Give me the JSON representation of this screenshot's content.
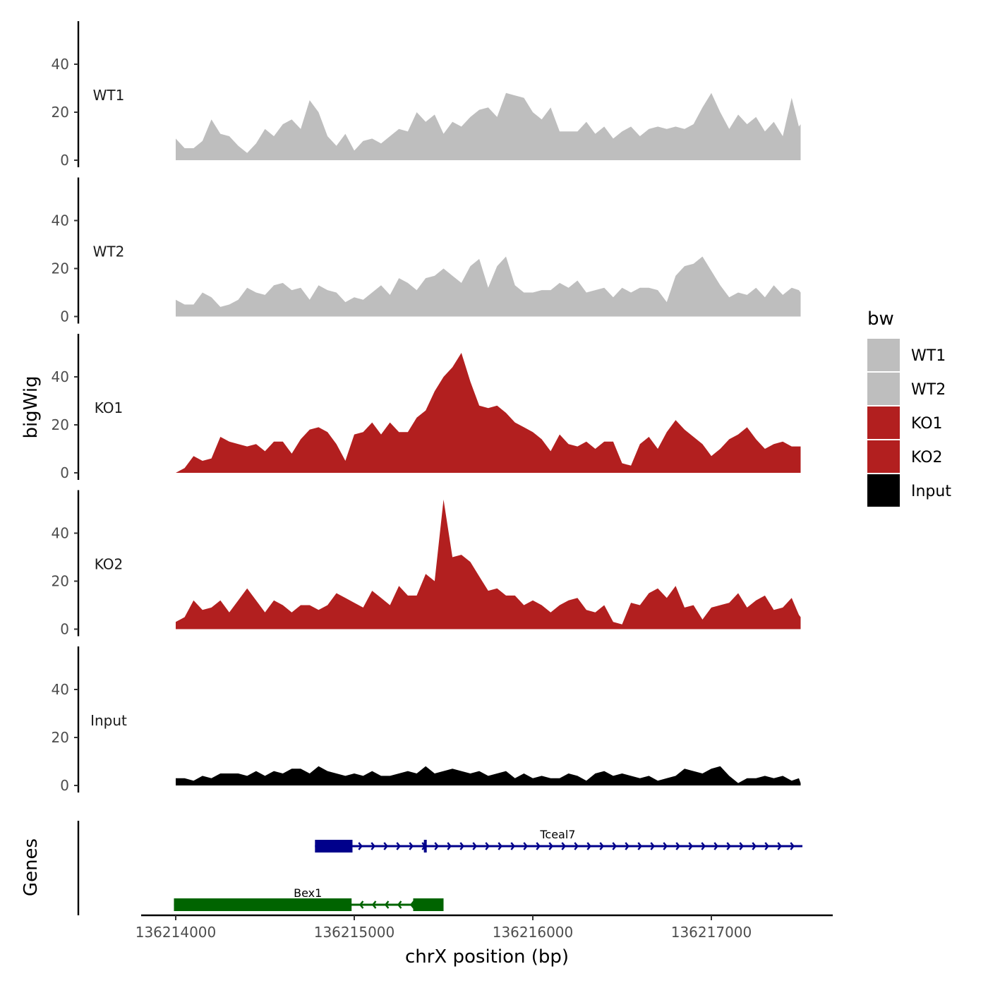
{
  "chart_data": {
    "type": "area",
    "title": "",
    "ylabel": "bigWig",
    "xlabel": "chrX position (bp)",
    "genes_label": "Genes",
    "ylim": [
      0,
      57
    ],
    "yticks": [
      0,
      20,
      40
    ],
    "xlim": [
      136213800,
      136217700
    ],
    "xticks": [
      136214000,
      136215000,
      136216000,
      136217000
    ],
    "xtick_labels": [
      "136214000",
      "136215000",
      "136216000",
      "136217000"
    ],
    "legend": {
      "title": "bw",
      "placement": "right",
      "entries": [
        {
          "name": "WT1",
          "color": "#bebebe"
        },
        {
          "name": "WT2",
          "color": "#bebebe"
        },
        {
          "name": "KO1",
          "color": "#b21f1f"
        },
        {
          "name": "KO2",
          "color": "#b21f1f"
        },
        {
          "name": "Input",
          "color": "#000000"
        }
      ]
    },
    "tracks": [
      {
        "name": "WT1",
        "color": "#bebebe",
        "x": [
          136214000,
          136214050,
          136214100,
          136214150,
          136214200,
          136214250,
          136214300,
          136214350,
          136214400,
          136214450,
          136214500,
          136214550,
          136214600,
          136214650,
          136214700,
          136214750,
          136214800,
          136214850,
          136214900,
          136214950,
          136215000,
          136215050,
          136215100,
          136215150,
          136215200,
          136215250,
          136215300,
          136215350,
          136215400,
          136215450,
          136215500,
          136215550,
          136215600,
          136215650,
          136215700,
          136215750,
          136215800,
          136215850,
          136215900,
          136215950,
          136216000,
          136216050,
          136216100,
          136216150,
          136216200,
          136216250,
          136216300,
          136216350,
          136216400,
          136216450,
          136216500,
          136216550,
          136216600,
          136216650,
          136216700,
          136216750,
          136216800,
          136216850,
          136216900,
          136216950,
          136217000,
          136217050,
          136217100,
          136217150,
          136217200,
          136217250,
          136217300,
          136217350,
          136217400,
          136217450,
          136217490,
          136217500
        ],
        "y": [
          9,
          5,
          5,
          8,
          17,
          11,
          10,
          6,
          3,
          7,
          13,
          10,
          15,
          17,
          13,
          25,
          20,
          10,
          6,
          11,
          4,
          8,
          9,
          7,
          10,
          13,
          12,
          20,
          16,
          19,
          11,
          16,
          14,
          18,
          21,
          22,
          18,
          28,
          27,
          26,
          20,
          17,
          22,
          12,
          12,
          12,
          16,
          11,
          14,
          9,
          12,
          14,
          10,
          13,
          14,
          13,
          14,
          13,
          15,
          22,
          28,
          20,
          13,
          19,
          15,
          18,
          12,
          16,
          10,
          26,
          14,
          15
        ]
      },
      {
        "name": "WT2",
        "color": "#bebebe",
        "x": [
          136214000,
          136214050,
          136214100,
          136214150,
          136214200,
          136214250,
          136214300,
          136214350,
          136214400,
          136214450,
          136214500,
          136214550,
          136214600,
          136214650,
          136214700,
          136214750,
          136214800,
          136214850,
          136214900,
          136214950,
          136215000,
          136215050,
          136215100,
          136215150,
          136215200,
          136215250,
          136215300,
          136215350,
          136215400,
          136215450,
          136215500,
          136215550,
          136215600,
          136215650,
          136215700,
          136215750,
          136215800,
          136215850,
          136215900,
          136215950,
          136216000,
          136216050,
          136216100,
          136216150,
          136216200,
          136216250,
          136216300,
          136216350,
          136216400,
          136216450,
          136216500,
          136216550,
          136216600,
          136216650,
          136216700,
          136216750,
          136216800,
          136216850,
          136216900,
          136216950,
          136217000,
          136217050,
          136217100,
          136217150,
          136217200,
          136217250,
          136217300,
          136217350,
          136217400,
          136217450,
          136217490,
          136217500
        ],
        "y": [
          7,
          5,
          5,
          10,
          8,
          4,
          5,
          7,
          12,
          10,
          9,
          13,
          14,
          11,
          12,
          7,
          13,
          11,
          10,
          6,
          8,
          7,
          10,
          13,
          9,
          16,
          14,
          11,
          16,
          17,
          20,
          17,
          14,
          21,
          24,
          12,
          21,
          25,
          13,
          10,
          10,
          11,
          11,
          14,
          12,
          15,
          10,
          11,
          12,
          8,
          12,
          10,
          12,
          12,
          11,
          6,
          17,
          21,
          22,
          25,
          19,
          13,
          8,
          10,
          9,
          12,
          8,
          13,
          9,
          12,
          11,
          10
        ]
      },
      {
        "name": "KO1",
        "color": "#b21f1f",
        "x": [
          136214000,
          136214050,
          136214100,
          136214150,
          136214200,
          136214250,
          136214300,
          136214350,
          136214400,
          136214450,
          136214500,
          136214550,
          136214600,
          136214650,
          136214700,
          136214750,
          136214800,
          136214850,
          136214900,
          136214950,
          136215000,
          136215050,
          136215100,
          136215150,
          136215200,
          136215250,
          136215300,
          136215350,
          136215400,
          136215450,
          136215500,
          136215550,
          136215600,
          136215650,
          136215700,
          136215750,
          136215800,
          136215850,
          136215900,
          136215950,
          136216000,
          136216050,
          136216100,
          136216150,
          136216200,
          136216250,
          136216300,
          136216350,
          136216400,
          136216450,
          136216500,
          136216550,
          136216600,
          136216650,
          136216700,
          136216750,
          136216800,
          136216850,
          136216900,
          136216950,
          136217000,
          136217050,
          136217100,
          136217150,
          136217200,
          136217250,
          136217300,
          136217350,
          136217400,
          136217450,
          136217490,
          136217500
        ],
        "y": [
          0,
          2,
          7,
          5,
          6,
          15,
          13,
          12,
          11,
          12,
          9,
          13,
          13,
          8,
          14,
          18,
          19,
          17,
          12,
          5,
          16,
          17,
          21,
          16,
          21,
          17,
          17,
          23,
          26,
          34,
          40,
          44,
          50,
          38,
          28,
          27,
          28,
          25,
          21,
          19,
          17,
          14,
          9,
          16,
          12,
          11,
          13,
          10,
          13,
          13,
          4,
          3,
          12,
          15,
          10,
          17,
          22,
          18,
          15,
          12,
          7,
          10,
          14,
          16,
          19,
          14,
          10,
          12,
          13,
          11,
          11,
          11
        ]
      },
      {
        "name": "KO2",
        "color": "#b21f1f",
        "x": [
          136214000,
          136214050,
          136214100,
          136214150,
          136214200,
          136214250,
          136214300,
          136214350,
          136214400,
          136214450,
          136214500,
          136214550,
          136214600,
          136214650,
          136214700,
          136214750,
          136214800,
          136214850,
          136214900,
          136214950,
          136215000,
          136215050,
          136215100,
          136215150,
          136215200,
          136215250,
          136215300,
          136215350,
          136215400,
          136215450,
          136215500,
          136215550,
          136215600,
          136215650,
          136215700,
          136215750,
          136215800,
          136215850,
          136215900,
          136215950,
          136216000,
          136216050,
          136216100,
          136216150,
          136216200,
          136216250,
          136216300,
          136216350,
          136216400,
          136216450,
          136216500,
          136216550,
          136216600,
          136216650,
          136216700,
          136216750,
          136216800,
          136216850,
          136216900,
          136216950,
          136217000,
          136217050,
          136217100,
          136217150,
          136217200,
          136217250,
          136217300,
          136217350,
          136217400,
          136217450,
          136217490,
          136217500
        ],
        "y": [
          3,
          5,
          12,
          8,
          9,
          12,
          7,
          12,
          17,
          12,
          7,
          12,
          10,
          7,
          10,
          10,
          8,
          10,
          15,
          13,
          11,
          9,
          16,
          13,
          10,
          18,
          14,
          14,
          23,
          20,
          54,
          30,
          31,
          28,
          22,
          16,
          17,
          14,
          14,
          10,
          12,
          10,
          7,
          10,
          12,
          13,
          8,
          7,
          10,
          3,
          2,
          11,
          10,
          15,
          17,
          13,
          18,
          9,
          10,
          4,
          9,
          10,
          11,
          15,
          9,
          12,
          14,
          8,
          9,
          13,
          6,
          5
        ]
      },
      {
        "name": "Input",
        "color": "#000000",
        "x": [
          136214000,
          136214050,
          136214100,
          136214150,
          136214200,
          136214250,
          136214300,
          136214350,
          136214400,
          136214450,
          136214500,
          136214550,
          136214600,
          136214650,
          136214700,
          136214750,
          136214800,
          136214850,
          136214900,
          136214950,
          136215000,
          136215050,
          136215100,
          136215150,
          136215200,
          136215250,
          136215300,
          136215350,
          136215400,
          136215450,
          136215500,
          136215550,
          136215600,
          136215650,
          136215700,
          136215750,
          136215800,
          136215850,
          136215900,
          136215950,
          136216000,
          136216050,
          136216100,
          136216150,
          136216200,
          136216250,
          136216300,
          136216350,
          136216400,
          136216450,
          136216500,
          136216550,
          136216600,
          136216650,
          136216700,
          136216750,
          136216800,
          136216850,
          136216900,
          136216950,
          136217000,
          136217050,
          136217100,
          136217150,
          136217200,
          136217250,
          136217300,
          136217350,
          136217400,
          136217450,
          136217490,
          136217500
        ],
        "y": [
          3,
          3,
          2,
          4,
          3,
          5,
          5,
          5,
          4,
          6,
          4,
          6,
          5,
          7,
          7,
          5,
          8,
          6,
          5,
          4,
          5,
          4,
          6,
          4,
          4,
          5,
          6,
          5,
          8,
          5,
          6,
          7,
          6,
          5,
          6,
          4,
          5,
          6,
          3,
          5,
          3,
          4,
          3,
          3,
          5,
          4,
          2,
          5,
          6,
          4,
          5,
          4,
          3,
          4,
          2,
          3,
          4,
          7,
          6,
          5,
          7,
          8,
          4,
          1,
          3,
          3,
          4,
          3,
          4,
          2,
          3,
          1
        ]
      }
    ],
    "genes": [
      {
        "name": "Tceal7",
        "strand": "+",
        "color": "#00008b",
        "start": 136214780,
        "end": 136217510,
        "exons": [
          [
            136214780,
            136214990
          ],
          [
            136215390,
            136215405
          ]
        ],
        "label_x": 136216140
      },
      {
        "name": "Bex1",
        "strand": "-",
        "color": "#006400",
        "start": 136213990,
        "end": 136215500,
        "exons": [
          [
            136213990,
            136214985
          ],
          [
            136215330,
            136215500
          ]
        ],
        "label_x": 136214740
      }
    ]
  }
}
